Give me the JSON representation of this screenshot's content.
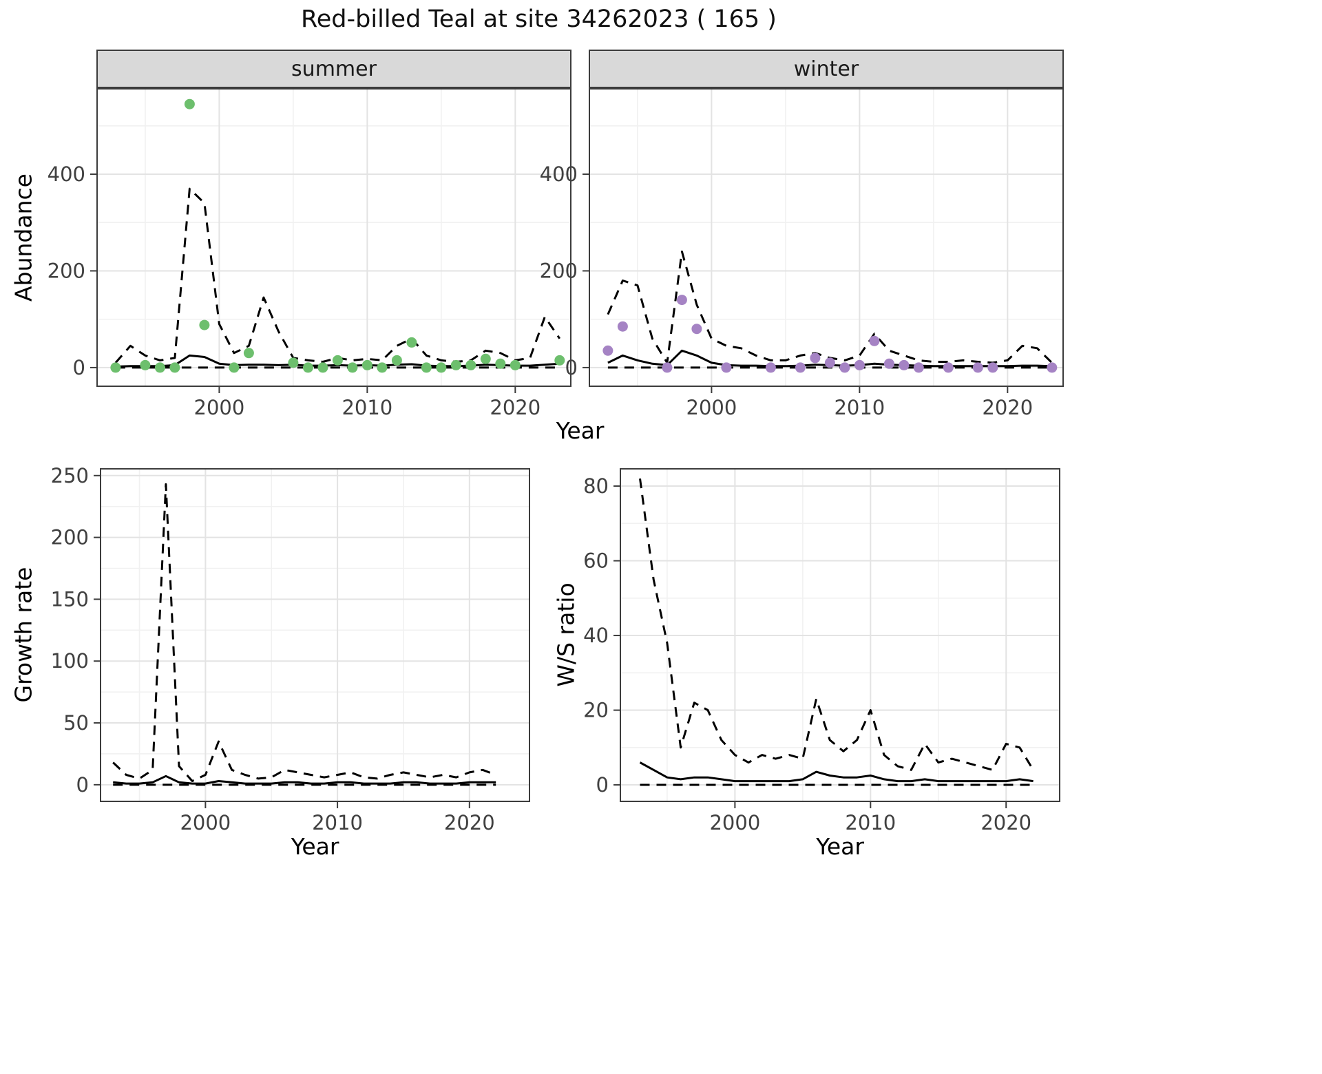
{
  "title": "Red-billed Teal at site 34262023 ( 165 )",
  "colors": {
    "summer_point": "#6dbf6d",
    "winter_point": "#a583c4",
    "line": "#000000",
    "grid_major": "#e3e3e3",
    "grid_minor": "#f1f1f1",
    "strip_bg": "#d9d9d9",
    "panel_border": "#3c3c3c",
    "tick_text": "#404040"
  },
  "chart_data": [
    {
      "id": "abundance-summer",
      "type": "line+scatter",
      "facet": "summer",
      "xlabel": "Year",
      "ylabel": "Abundance",
      "xlim": [
        1991.7,
        2023.8
      ],
      "ylim": [
        -40,
        578
      ],
      "xticks": [
        2000,
        2010,
        2020
      ],
      "xticks_minor": [
        1995,
        2005,
        2015
      ],
      "yticks": [
        0,
        200,
        400
      ],
      "yticks_minor": [
        100,
        300,
        500
      ],
      "points": {
        "color_key": "summer_point",
        "years": [
          1993,
          1995,
          1996,
          1997,
          1998,
          1999,
          2001,
          2002,
          2005,
          2006,
          2007,
          2008,
          2009,
          2010,
          2011,
          2012,
          2013,
          2014,
          2015,
          2016,
          2017,
          2018,
          2019,
          2020,
          2023
        ],
        "values": [
          0,
          5,
          0,
          0,
          545,
          88,
          0,
          30,
          10,
          0,
          0,
          15,
          0,
          5,
          0,
          15,
          52,
          0,
          0,
          5,
          5,
          18,
          8,
          5,
          15
        ]
      },
      "lines": [
        {
          "name": "median",
          "style": "solid",
          "years": [
            1993,
            1994,
            1995,
            1996,
            1997,
            1998,
            1999,
            2000,
            2001,
            2002,
            2003,
            2004,
            2005,
            2006,
            2007,
            2008,
            2009,
            2010,
            2011,
            2012,
            2013,
            2014,
            2015,
            2016,
            2017,
            2018,
            2019,
            2020,
            2021,
            2022,
            2023
          ],
          "values": [
            2,
            3,
            3,
            3,
            5,
            25,
            22,
            8,
            5,
            6,
            6,
            5,
            6,
            4,
            4,
            5,
            4,
            5,
            4,
            6,
            7,
            4,
            3,
            3,
            4,
            6,
            5,
            4,
            4,
            6,
            8
          ]
        },
        {
          "name": "upper-ci",
          "style": "dashed",
          "years": [
            1993,
            1994,
            1995,
            1996,
            1997,
            1998,
            1999,
            2000,
            2001,
            2002,
            2003,
            2004,
            2005,
            2006,
            2007,
            2008,
            2009,
            2010,
            2011,
            2012,
            2013,
            2014,
            2015,
            2016,
            2017,
            2018,
            2019,
            2020,
            2021,
            2022,
            2023
          ],
          "values": [
            10,
            45,
            25,
            15,
            20,
            370,
            340,
            90,
            30,
            45,
            145,
            75,
            20,
            15,
            12,
            20,
            15,
            18,
            15,
            45,
            60,
            25,
            15,
            12,
            15,
            35,
            30,
            15,
            20,
            105,
            60
          ]
        },
        {
          "name": "lower-ci",
          "style": "dashed",
          "years": [
            1993,
            2023
          ],
          "values": [
            0,
            0
          ]
        }
      ]
    },
    {
      "id": "abundance-winter",
      "type": "line+scatter",
      "facet": "winter",
      "xlabel": "Year",
      "ylabel": "Abundance",
      "xlim": [
        1991.7,
        2023.8
      ],
      "ylim": [
        -40,
        578
      ],
      "xticks": [
        2000,
        2010,
        2020
      ],
      "xticks_minor": [
        1995,
        2005,
        2015
      ],
      "yticks": [
        0,
        200,
        400
      ],
      "yticks_minor": [
        100,
        300,
        500
      ],
      "points": {
        "color_key": "winter_point",
        "years": [
          1993,
          1994,
          1997,
          1998,
          1999,
          2001,
          2004,
          2006,
          2007,
          2008,
          2009,
          2010,
          2011,
          2012,
          2013,
          2014,
          2016,
          2018,
          2019,
          2023
        ],
        "values": [
          35,
          85,
          0,
          140,
          80,
          0,
          0,
          0,
          20,
          10,
          0,
          5,
          55,
          8,
          5,
          0,
          0,
          0,
          0,
          0
        ]
      },
      "lines": [
        {
          "name": "median",
          "style": "solid",
          "years": [
            1993,
            1994,
            1995,
            1996,
            1997,
            1998,
            1999,
            2000,
            2001,
            2002,
            2003,
            2004,
            2005,
            2006,
            2007,
            2008,
            2009,
            2010,
            2011,
            2012,
            2013,
            2014,
            2015,
            2016,
            2017,
            2018,
            2019,
            2020,
            2021,
            2022,
            2023
          ],
          "values": [
            10,
            25,
            15,
            8,
            5,
            35,
            25,
            10,
            5,
            4,
            4,
            3,
            3,
            4,
            6,
            5,
            4,
            5,
            8,
            6,
            5,
            4,
            3,
            3,
            3,
            3,
            3,
            3,
            4,
            4,
            3
          ]
        },
        {
          "name": "upper-ci",
          "style": "dashed",
          "years": [
            1993,
            1994,
            1995,
            1996,
            1997,
            1998,
            1999,
            2000,
            2001,
            2002,
            2003,
            2004,
            2005,
            2006,
            2007,
            2008,
            2009,
            2010,
            2011,
            2012,
            2013,
            2014,
            2015,
            2016,
            2017,
            2018,
            2019,
            2020,
            2021,
            2022,
            2023
          ],
          "values": [
            110,
            180,
            170,
            60,
            10,
            240,
            130,
            60,
            45,
            40,
            25,
            15,
            15,
            25,
            30,
            20,
            15,
            25,
            70,
            35,
            25,
            15,
            12,
            12,
            15,
            12,
            10,
            15,
            45,
            40,
            10
          ]
        },
        {
          "name": "lower-ci",
          "style": "dashed",
          "years": [
            1993,
            2023
          ],
          "values": [
            0,
            0
          ]
        }
      ]
    },
    {
      "id": "growth-rate",
      "type": "line",
      "facet": null,
      "xlabel": "Year",
      "ylabel": "Growth rate",
      "xlim": [
        1992,
        2024.6
      ],
      "ylim": [
        -14,
        256
      ],
      "xticks": [
        2000,
        2010,
        2020
      ],
      "xticks_minor": [
        1995,
        2005,
        2015
      ],
      "yticks": [
        0,
        50,
        100,
        150,
        200,
        250
      ],
      "yticks_minor": [
        25,
        75,
        125,
        175,
        225
      ],
      "points": null,
      "lines": [
        {
          "name": "median",
          "style": "solid",
          "years": [
            1993,
            1994,
            1995,
            1996,
            1997,
            1998,
            1999,
            2000,
            2001,
            2002,
            2003,
            2004,
            2005,
            2006,
            2007,
            2008,
            2009,
            2010,
            2011,
            2012,
            2013,
            2014,
            2015,
            2016,
            2017,
            2018,
            2019,
            2020,
            2021,
            2022
          ],
          "values": [
            2,
            1,
            1,
            2,
            7,
            2,
            1,
            1,
            3,
            2,
            1,
            1,
            1,
            2,
            2,
            1,
            1,
            2,
            2,
            1,
            1,
            1,
            2,
            2,
            1,
            1,
            1,
            2,
            2,
            2
          ]
        },
        {
          "name": "upper-ci",
          "style": "dashed",
          "years": [
            1993,
            1994,
            1995,
            1996,
            1997,
            1998,
            1999,
            2000,
            2001,
            2002,
            2003,
            2004,
            2005,
            2006,
            2007,
            2008,
            2009,
            2010,
            2011,
            2012,
            2013,
            2014,
            2015,
            2016,
            2017,
            2018,
            2019,
            2020,
            2021,
            2022
          ],
          "values": [
            18,
            8,
            5,
            12,
            243,
            15,
            3,
            8,
            35,
            12,
            8,
            5,
            6,
            12,
            10,
            8,
            6,
            8,
            10,
            6,
            5,
            8,
            10,
            8,
            6,
            8,
            6,
            10,
            12,
            8
          ]
        },
        {
          "name": "lower-ci",
          "style": "dashed",
          "years": [
            1993,
            2022
          ],
          "values": [
            0,
            0
          ]
        }
      ]
    },
    {
      "id": "ws-ratio",
      "type": "line",
      "facet": null,
      "xlabel": "Year",
      "ylabel": "W/S ratio",
      "xlim": [
        1991.5,
        2024
      ],
      "ylim": [
        -4.6,
        84.8
      ],
      "xticks": [
        2000,
        2010,
        2020
      ],
      "xticks_minor": [
        1995,
        2005,
        2015
      ],
      "yticks": [
        0,
        20,
        40,
        60,
        80
      ],
      "yticks_minor": [
        10,
        30,
        50,
        70
      ],
      "points": null,
      "lines": [
        {
          "name": "median",
          "style": "solid",
          "years": [
            1993,
            1994,
            1995,
            1996,
            1997,
            1998,
            1999,
            2000,
            2001,
            2002,
            2003,
            2004,
            2005,
            2006,
            2007,
            2008,
            2009,
            2010,
            2011,
            2012,
            2013,
            2014,
            2015,
            2016,
            2017,
            2018,
            2019,
            2020,
            2021,
            2022
          ],
          "values": [
            6,
            4,
            2,
            1.5,
            2,
            2,
            1.5,
            1,
            1,
            1,
            1,
            1,
            1.5,
            3.5,
            2.5,
            2,
            2,
            2.5,
            1.5,
            1,
            1,
            1.5,
            1,
            1,
            1,
            1,
            1,
            1,
            1.5,
            1
          ]
        },
        {
          "name": "upper-ci",
          "style": "dashed",
          "years": [
            1993,
            1994,
            1995,
            1996,
            1997,
            1998,
            1999,
            2000,
            2001,
            2002,
            2003,
            2004,
            2005,
            2006,
            2007,
            2008,
            2009,
            2010,
            2011,
            2012,
            2013,
            2014,
            2015,
            2016,
            2017,
            2018,
            2019,
            2020,
            2021,
            2022
          ],
          "values": [
            82,
            55,
            38,
            10,
            22,
            20,
            12,
            8,
            6,
            8,
            7,
            8,
            7,
            23,
            12,
            9,
            12,
            20,
            8,
            5,
            4,
            11,
            6,
            7,
            6,
            5,
            4,
            11,
            10,
            4
          ]
        },
        {
          "name": "lower-ci",
          "style": "dashed",
          "years": [
            1993,
            2022
          ],
          "values": [
            0,
            0
          ]
        }
      ]
    }
  ]
}
